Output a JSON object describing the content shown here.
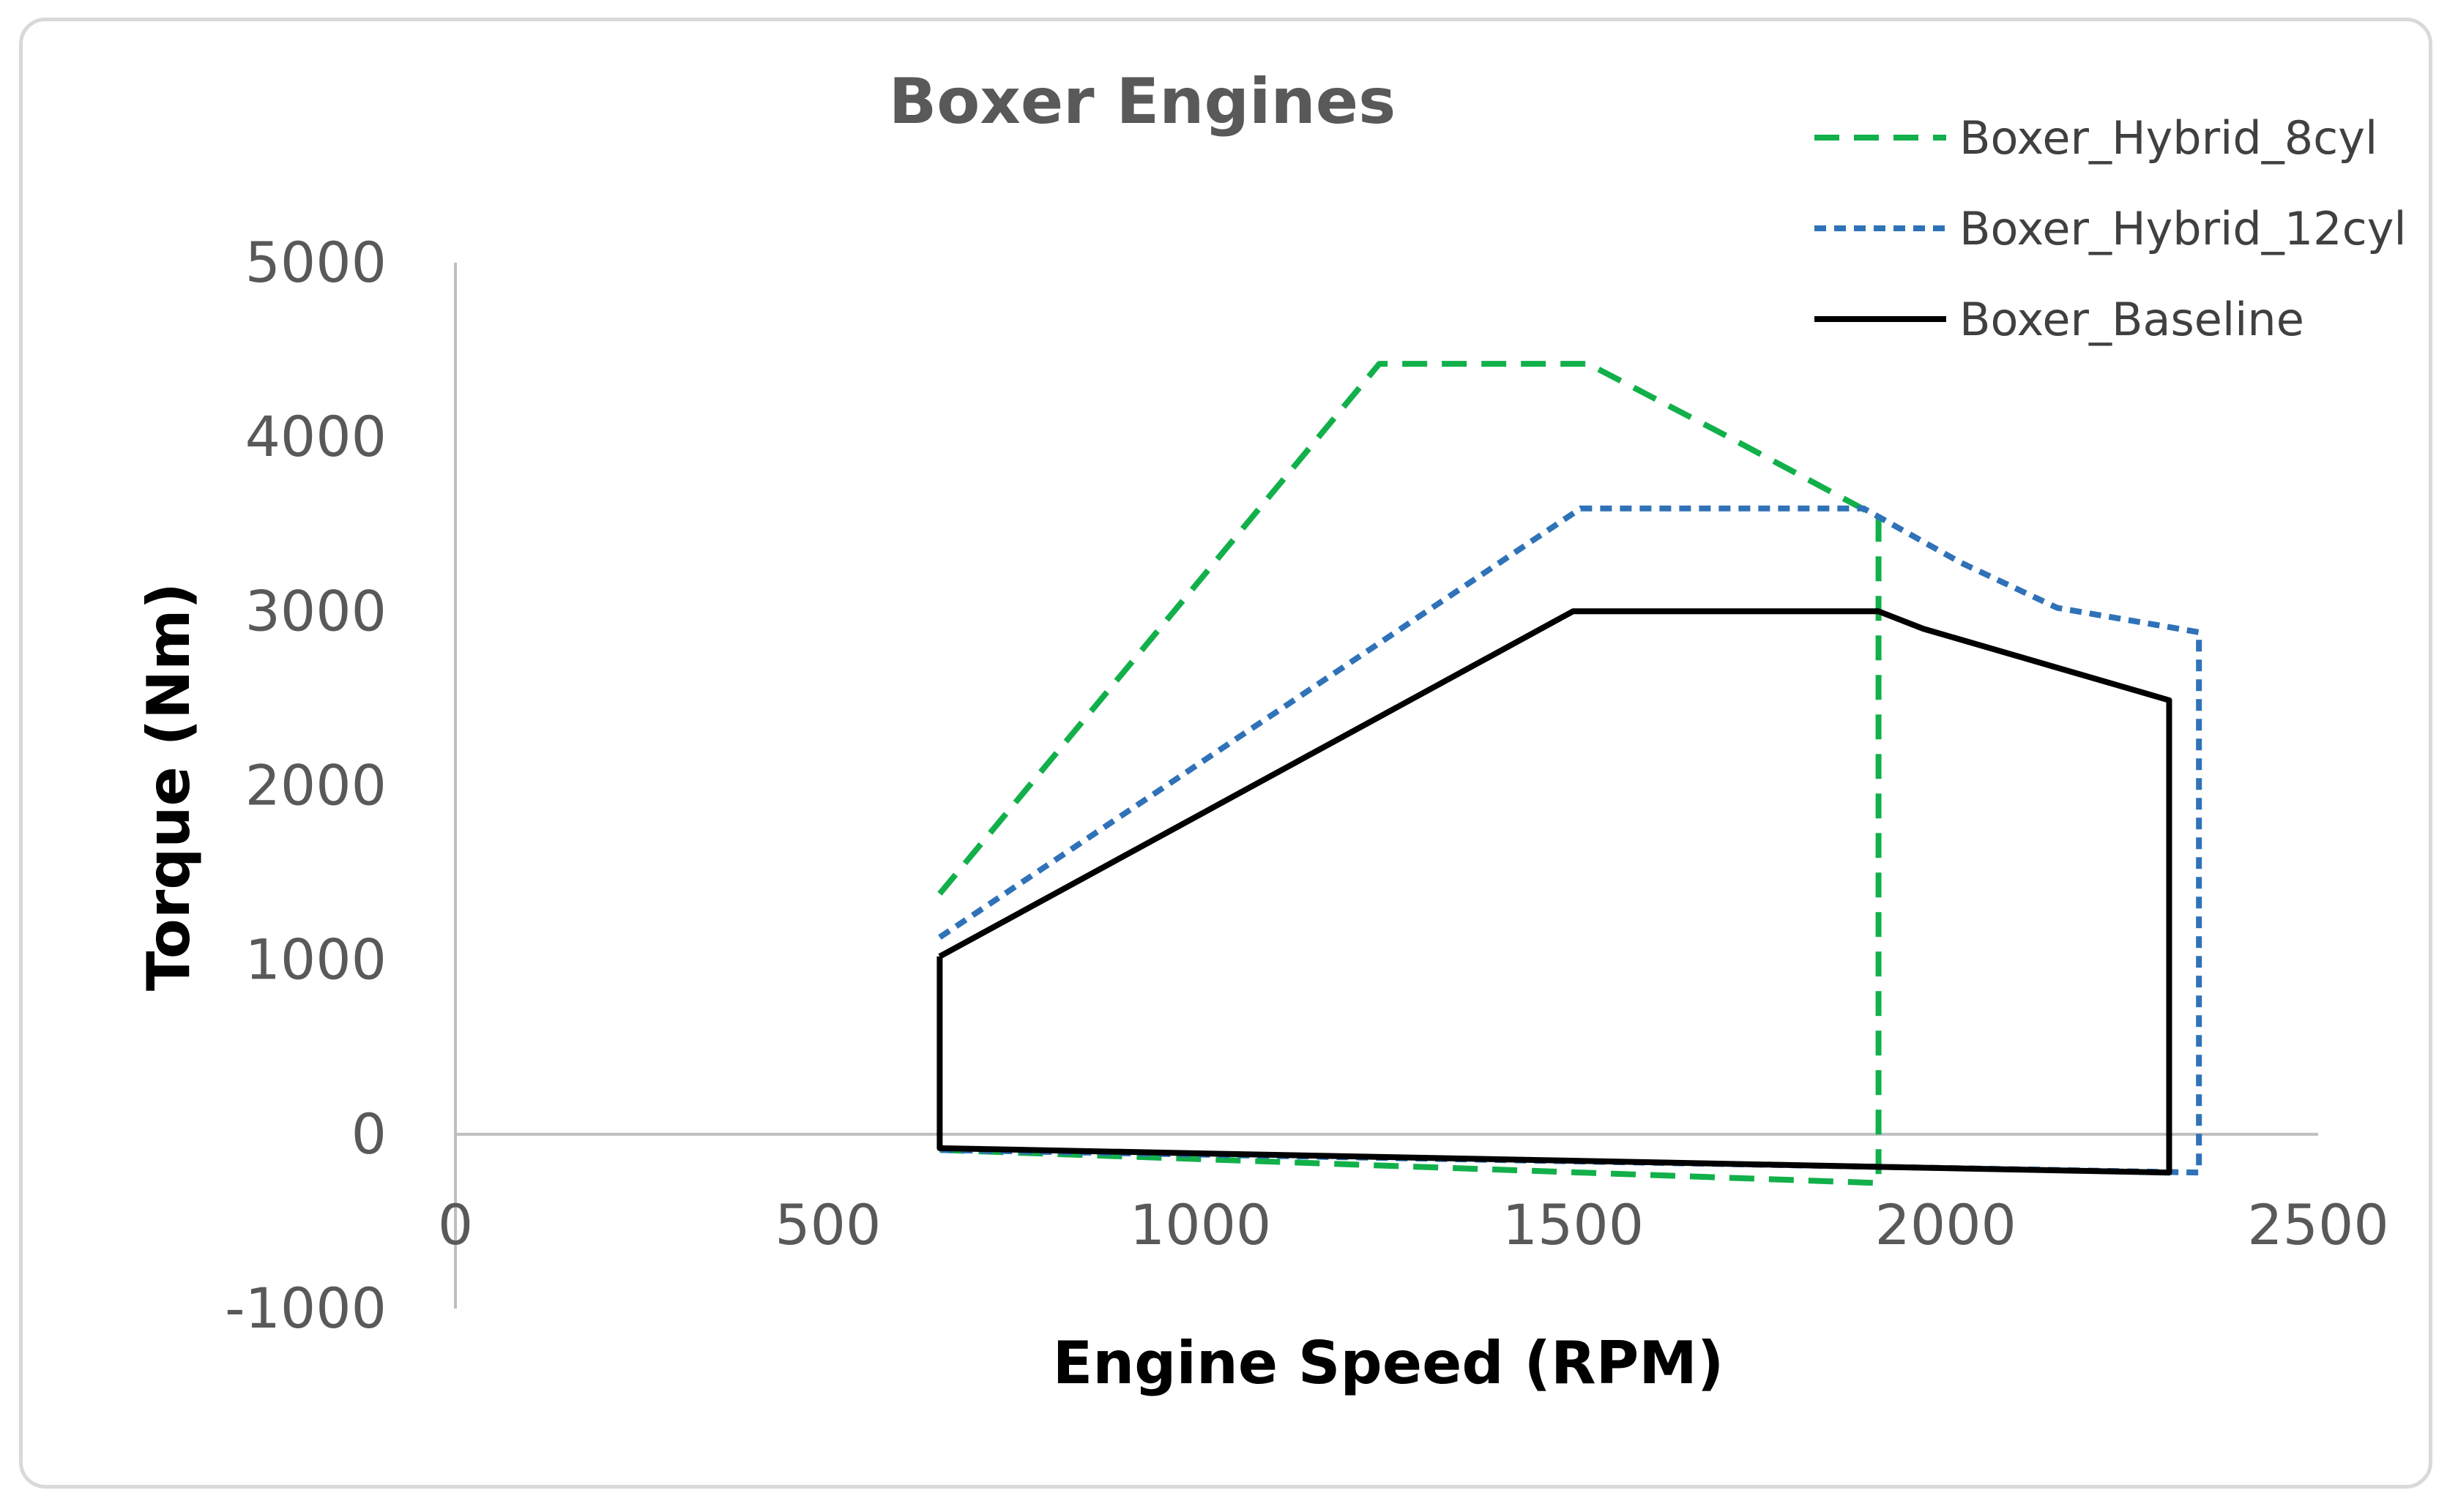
{
  "chart_data": {
    "type": "line",
    "title": "Boxer Engines",
    "xlabel": "Engine Speed (RPM)",
    "ylabel": "Torque (Nm)",
    "xlim": [
      0,
      2500
    ],
    "ylim": [
      -1000,
      5000
    ],
    "xticks": [
      "0",
      "500",
      "1000",
      "1500",
      "2000",
      "2500"
    ],
    "yticks": [
      "5000",
      "4000",
      "3000",
      "2000",
      "1000",
      "0",
      "-1000"
    ],
    "grid": false,
    "legend_position": "top-right",
    "series": [
      {
        "name": "Boxer_Hybrid_8cyl",
        "color": "#12b04a",
        "dash": "long-dash",
        "points": [
          [
            650,
            1380
          ],
          [
            1240,
            4420
          ],
          [
            1520,
            4420
          ],
          [
            1700,
            4020
          ],
          [
            1910,
            3540
          ],
          [
            1910,
            -280
          ],
          [
            650,
            -90
          ]
        ]
      },
      {
        "name": "Boxer_Hybrid_12cyl",
        "color": "#2f72b8",
        "dash": "short-dash",
        "points": [
          [
            650,
            1130
          ],
          [
            1510,
            3590
          ],
          [
            1890,
            3590
          ],
          [
            2020,
            3280
          ],
          [
            2150,
            3020
          ],
          [
            2340,
            2880
          ],
          [
            2340,
            -220
          ],
          [
            650,
            -90
          ]
        ]
      },
      {
        "name": "Boxer_Baseline",
        "color": "#000000",
        "dash": "solid",
        "points": [
          [
            650,
            1020
          ],
          [
            1500,
            3000
          ],
          [
            1910,
            3000
          ],
          [
            1970,
            2900
          ],
          [
            2300,
            2490
          ],
          [
            2300,
            -220
          ],
          [
            650,
            -80
          ],
          [
            650,
            1020
          ]
        ]
      }
    ]
  }
}
